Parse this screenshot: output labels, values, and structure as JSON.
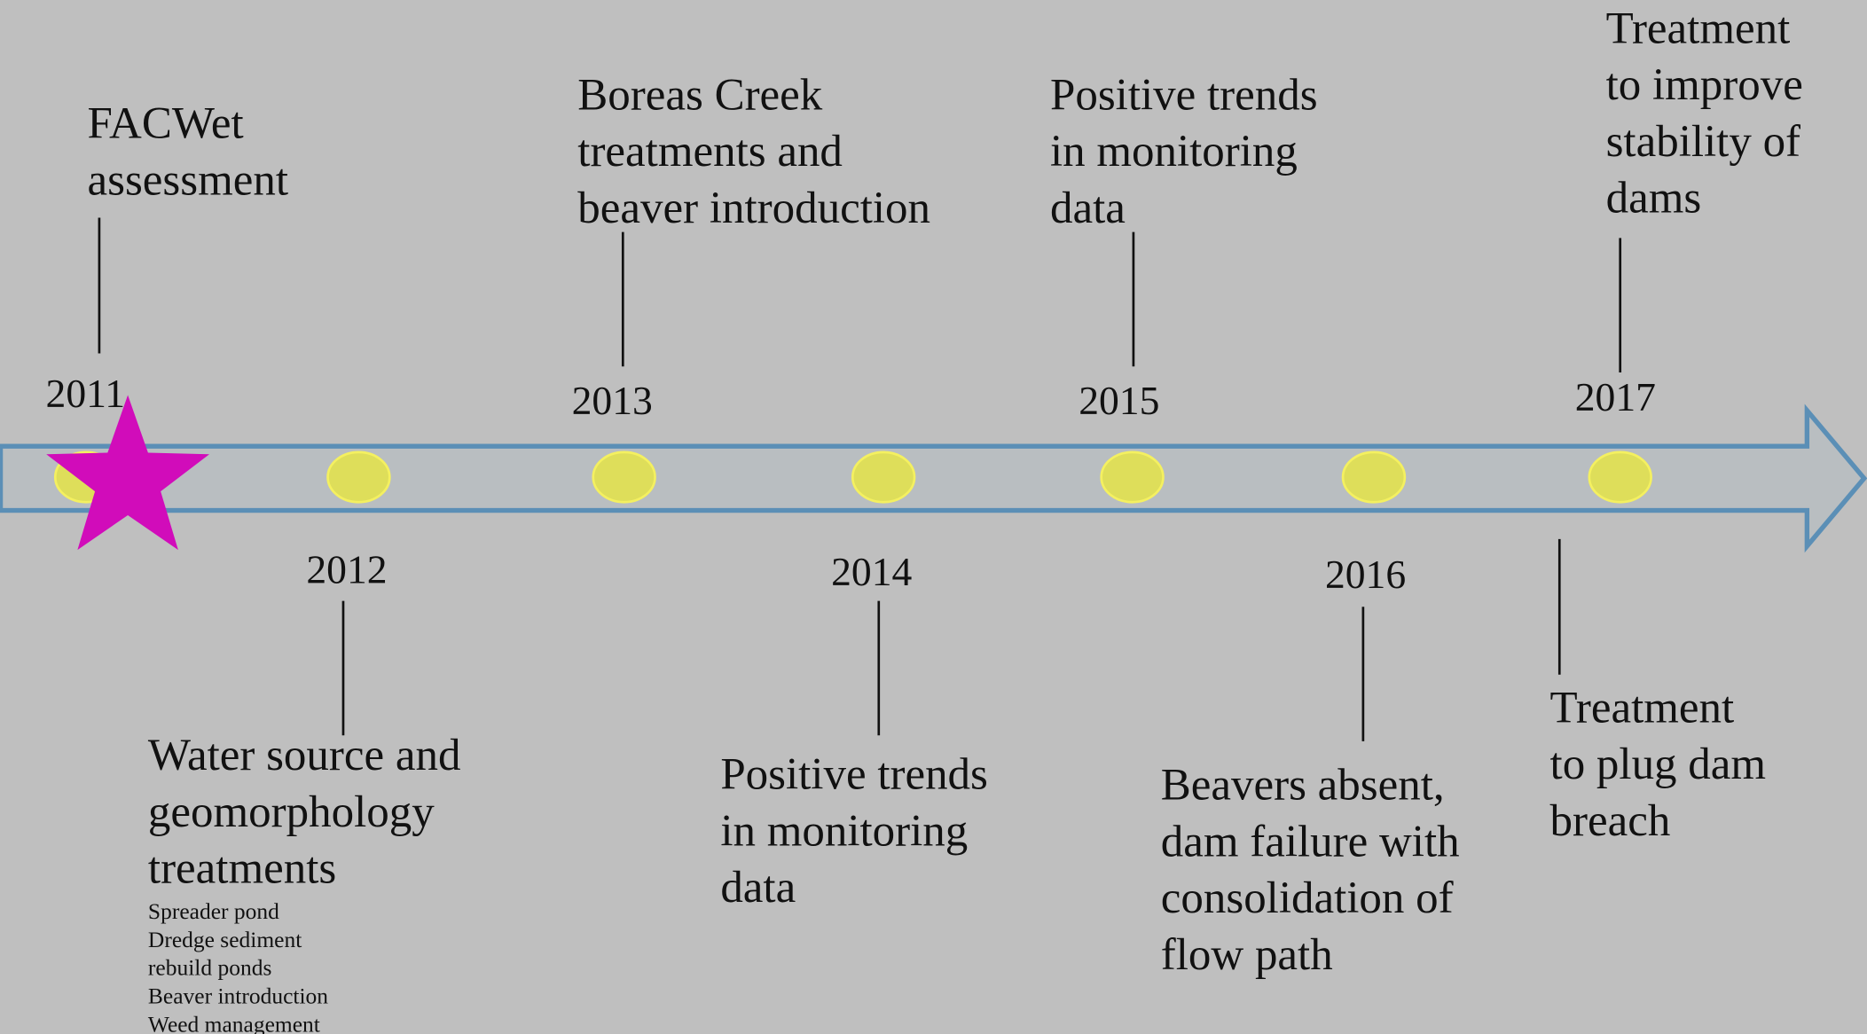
{
  "timeline": {
    "years": [
      "2011",
      "2012",
      "2013",
      "2014",
      "2015",
      "2016",
      "2017"
    ],
    "notes": [
      {
        "lines": [
          "FACWet",
          "assessment"
        ]
      },
      {
        "lines": [
          "Water source and",
          "geomorphology",
          "treatments"
        ],
        "details": [
          "Spreader pond",
          "Dredge sediment",
          "rebuild ponds",
          "Beaver introduction",
          "Weed management"
        ]
      },
      {
        "lines": [
          "Boreas Creek",
          "treatments and",
          "beaver introduction"
        ]
      },
      {
        "lines": [
          "Positive trends",
          "in monitoring",
          "data"
        ]
      },
      {
        "lines": [
          "Positive trends",
          "in monitoring",
          "data"
        ]
      },
      {
        "lines": [
          "Beavers absent,",
          "dam failure with",
          "consolidation of",
          "flow path"
        ]
      },
      {
        "lines": [
          "Treatment",
          "to improve",
          "stability of",
          "dams"
        ]
      },
      {
        "lines": [
          "Treatment",
          "to plug dam",
          "breach"
        ]
      }
    ]
  }
}
